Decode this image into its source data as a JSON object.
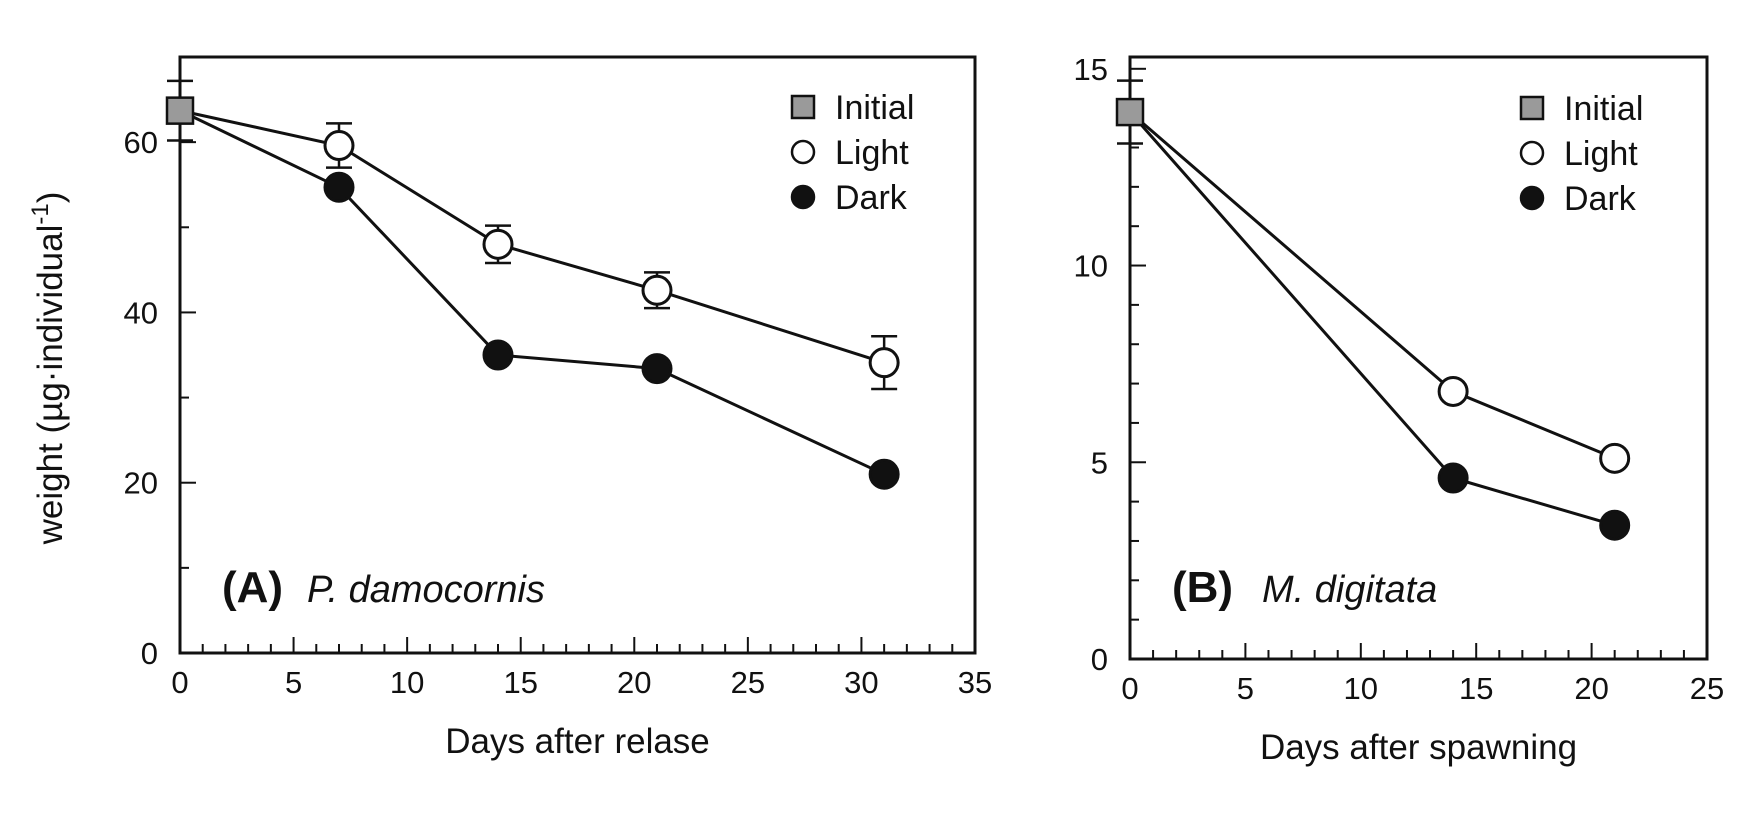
{
  "ylabel_main": "weight (µg·individual",
  "ylabel_sup": "-1",
  "ylabel_close": ")",
  "colors": {
    "axis": "#111111",
    "initial_fill": "#9a9a9a",
    "light_fill": "#ffffff",
    "dark_fill": "#111111"
  },
  "chart_data": [
    {
      "type": "line",
      "panel_letter": "(A)",
      "species": "P. damocornis",
      "xlabel": "Days after relase",
      "ylabel": "weight (µg·individual-1)",
      "xlim": [
        0,
        35
      ],
      "ylim": [
        0,
        70
      ],
      "xticks": [
        0,
        5,
        10,
        15,
        20,
        25,
        30,
        35
      ],
      "yticks": [
        0,
        20,
        40,
        60
      ],
      "legend": [
        "Initial",
        "Light",
        "Dark"
      ],
      "legend_position": "top-right",
      "initial": {
        "x": 0,
        "y": 63.7,
        "err": 3.5
      },
      "series": [
        {
          "name": "Light",
          "points": [
            {
              "x": 0,
              "y": 63.7
            },
            {
              "x": 7,
              "y": 59.6,
              "err": 2.6
            },
            {
              "x": 14,
              "y": 48.0,
              "err": 2.2
            },
            {
              "x": 21,
              "y": 42.6,
              "err": 2.1
            },
            {
              "x": 31,
              "y": 34.1,
              "err": 3.1
            }
          ]
        },
        {
          "name": "Dark",
          "points": [
            {
              "x": 0,
              "y": 63.7
            },
            {
              "x": 7,
              "y": 54.7
            },
            {
              "x": 14,
              "y": 35.0
            },
            {
              "x": 21,
              "y": 33.4
            },
            {
              "x": 31,
              "y": 21.0
            }
          ]
        }
      ]
    },
    {
      "type": "line",
      "panel_letter": "(B)",
      "species": "M. digitata",
      "xlabel": "Days after spawning",
      "ylabel": "",
      "xlim": [
        0,
        25
      ],
      "ylim": [
        0,
        15.3
      ],
      "xticks": [
        0,
        5,
        10,
        15,
        20,
        25
      ],
      "yticks": [
        0,
        5,
        10,
        15
      ],
      "legend": [
        "Initial",
        "Light",
        "Dark"
      ],
      "legend_position": "top-right",
      "initial": {
        "x": 0,
        "y": 13.9,
        "err": 0.8
      },
      "series": [
        {
          "name": "Light",
          "points": [
            {
              "x": 0,
              "y": 13.9
            },
            {
              "x": 14,
              "y": 6.8
            },
            {
              "x": 21,
              "y": 5.1
            }
          ]
        },
        {
          "name": "Dark",
          "points": [
            {
              "x": 0,
              "y": 13.9
            },
            {
              "x": 14,
              "y": 4.6
            },
            {
              "x": 21,
              "y": 3.4
            }
          ]
        }
      ]
    }
  ]
}
